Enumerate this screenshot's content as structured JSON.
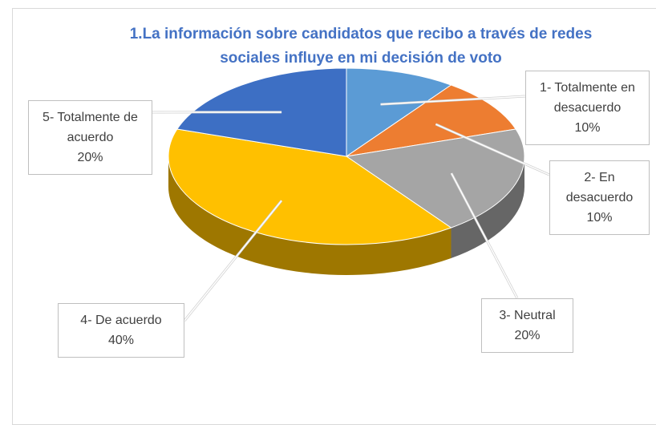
{
  "chart_data": {
    "type": "pie",
    "title": "1.La información sobre candidatos que recibo a través de redes sociales influye en mi decisión de voto",
    "categories": [
      "1- Totalmente en desacuerdo",
      "2- En desacuerdo",
      "3- Neutral",
      "4- De acuerdo",
      "5- Totalmente de acuerdo"
    ],
    "values": [
      10,
      10,
      20,
      40,
      20
    ],
    "value_labels": [
      "10%",
      "10%",
      "20%",
      "40%",
      "20%"
    ],
    "colors": [
      "#5b9bd5",
      "#ed7d31",
      "#a5a5a5",
      "#ffc000",
      "#3d6fc4"
    ]
  }
}
